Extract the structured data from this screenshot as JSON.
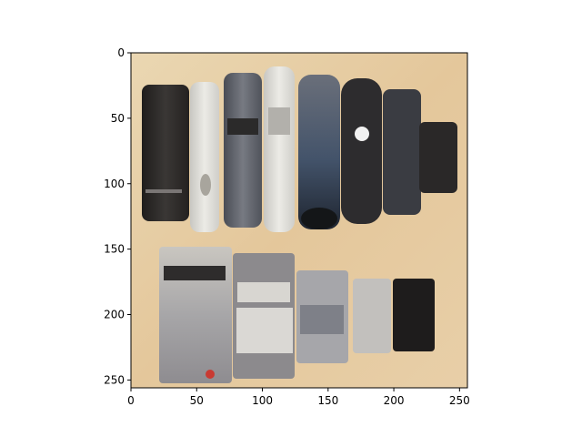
{
  "figure": {
    "image_description_hidden": "",
    "xlim": [
      0,
      256
    ],
    "ylim": [
      256,
      0
    ],
    "y_inverted": true
  },
  "x_axis": {
    "ticks": [
      {
        "value": 0,
        "label": "0"
      },
      {
        "value": 50,
        "label": "50"
      },
      {
        "value": 100,
        "label": "100"
      },
      {
        "value": 150,
        "label": "150"
      },
      {
        "value": 200,
        "label": "200"
      },
      {
        "value": 250,
        "label": "250"
      }
    ]
  },
  "y_axis": {
    "ticks": [
      {
        "value": 0,
        "label": "0"
      },
      {
        "value": 50,
        "label": "50"
      },
      {
        "value": 100,
        "label": "100"
      },
      {
        "value": 150,
        "label": "150"
      },
      {
        "value": 200,
        "label": "200"
      },
      {
        "value": 250,
        "label": "250"
      }
    ]
  },
  "colors": {
    "background": "#e8cfa6",
    "device_black": "#2e2b2a",
    "device_gray": "#5d6068",
    "device_white": "#d9d8d3",
    "device_blue": "#3d5570",
    "accent_red": "#c93a32"
  }
}
